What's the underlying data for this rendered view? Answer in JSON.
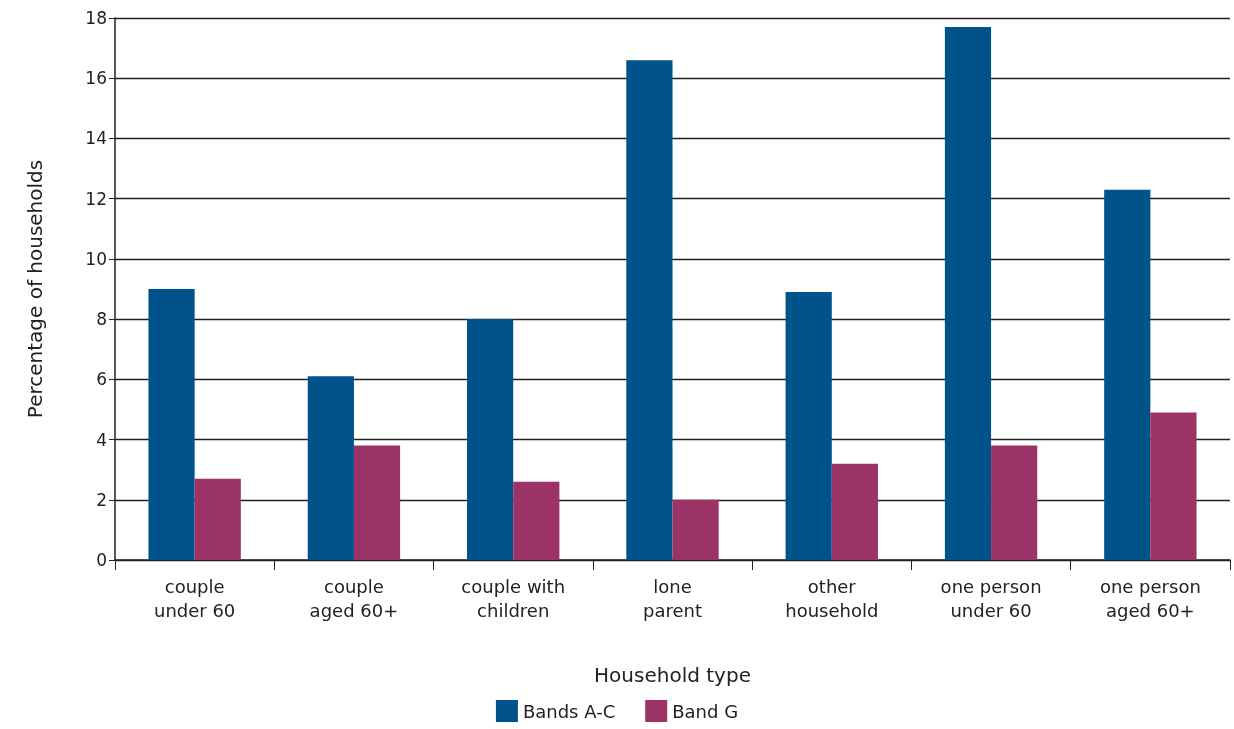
{
  "chart_data": {
    "type": "bar",
    "xlabel": "Household type",
    "ylabel": "Percentage of households",
    "categories": [
      "couple\nunder 60",
      "couple\naged 60+",
      "couple with\nchildren",
      "lone\nparent",
      "other\nhousehold",
      "one person\nunder 60",
      "one person\naged 60+"
    ],
    "series": [
      {
        "name": "Bands A-C",
        "color": "#00538a",
        "values": [
          9.0,
          6.1,
          8.0,
          16.6,
          8.9,
          17.7,
          12.3
        ]
      },
      {
        "name": "Band G",
        "color": "#9b3366",
        "values": [
          2.7,
          3.8,
          2.6,
          2.0,
          3.2,
          3.8,
          4.9
        ]
      }
    ],
    "ylim": [
      0,
      18
    ],
    "yticks": [
      0,
      2,
      4,
      6,
      8,
      10,
      12,
      14,
      16,
      18
    ],
    "grid": "y",
    "legend": "bottom"
  }
}
